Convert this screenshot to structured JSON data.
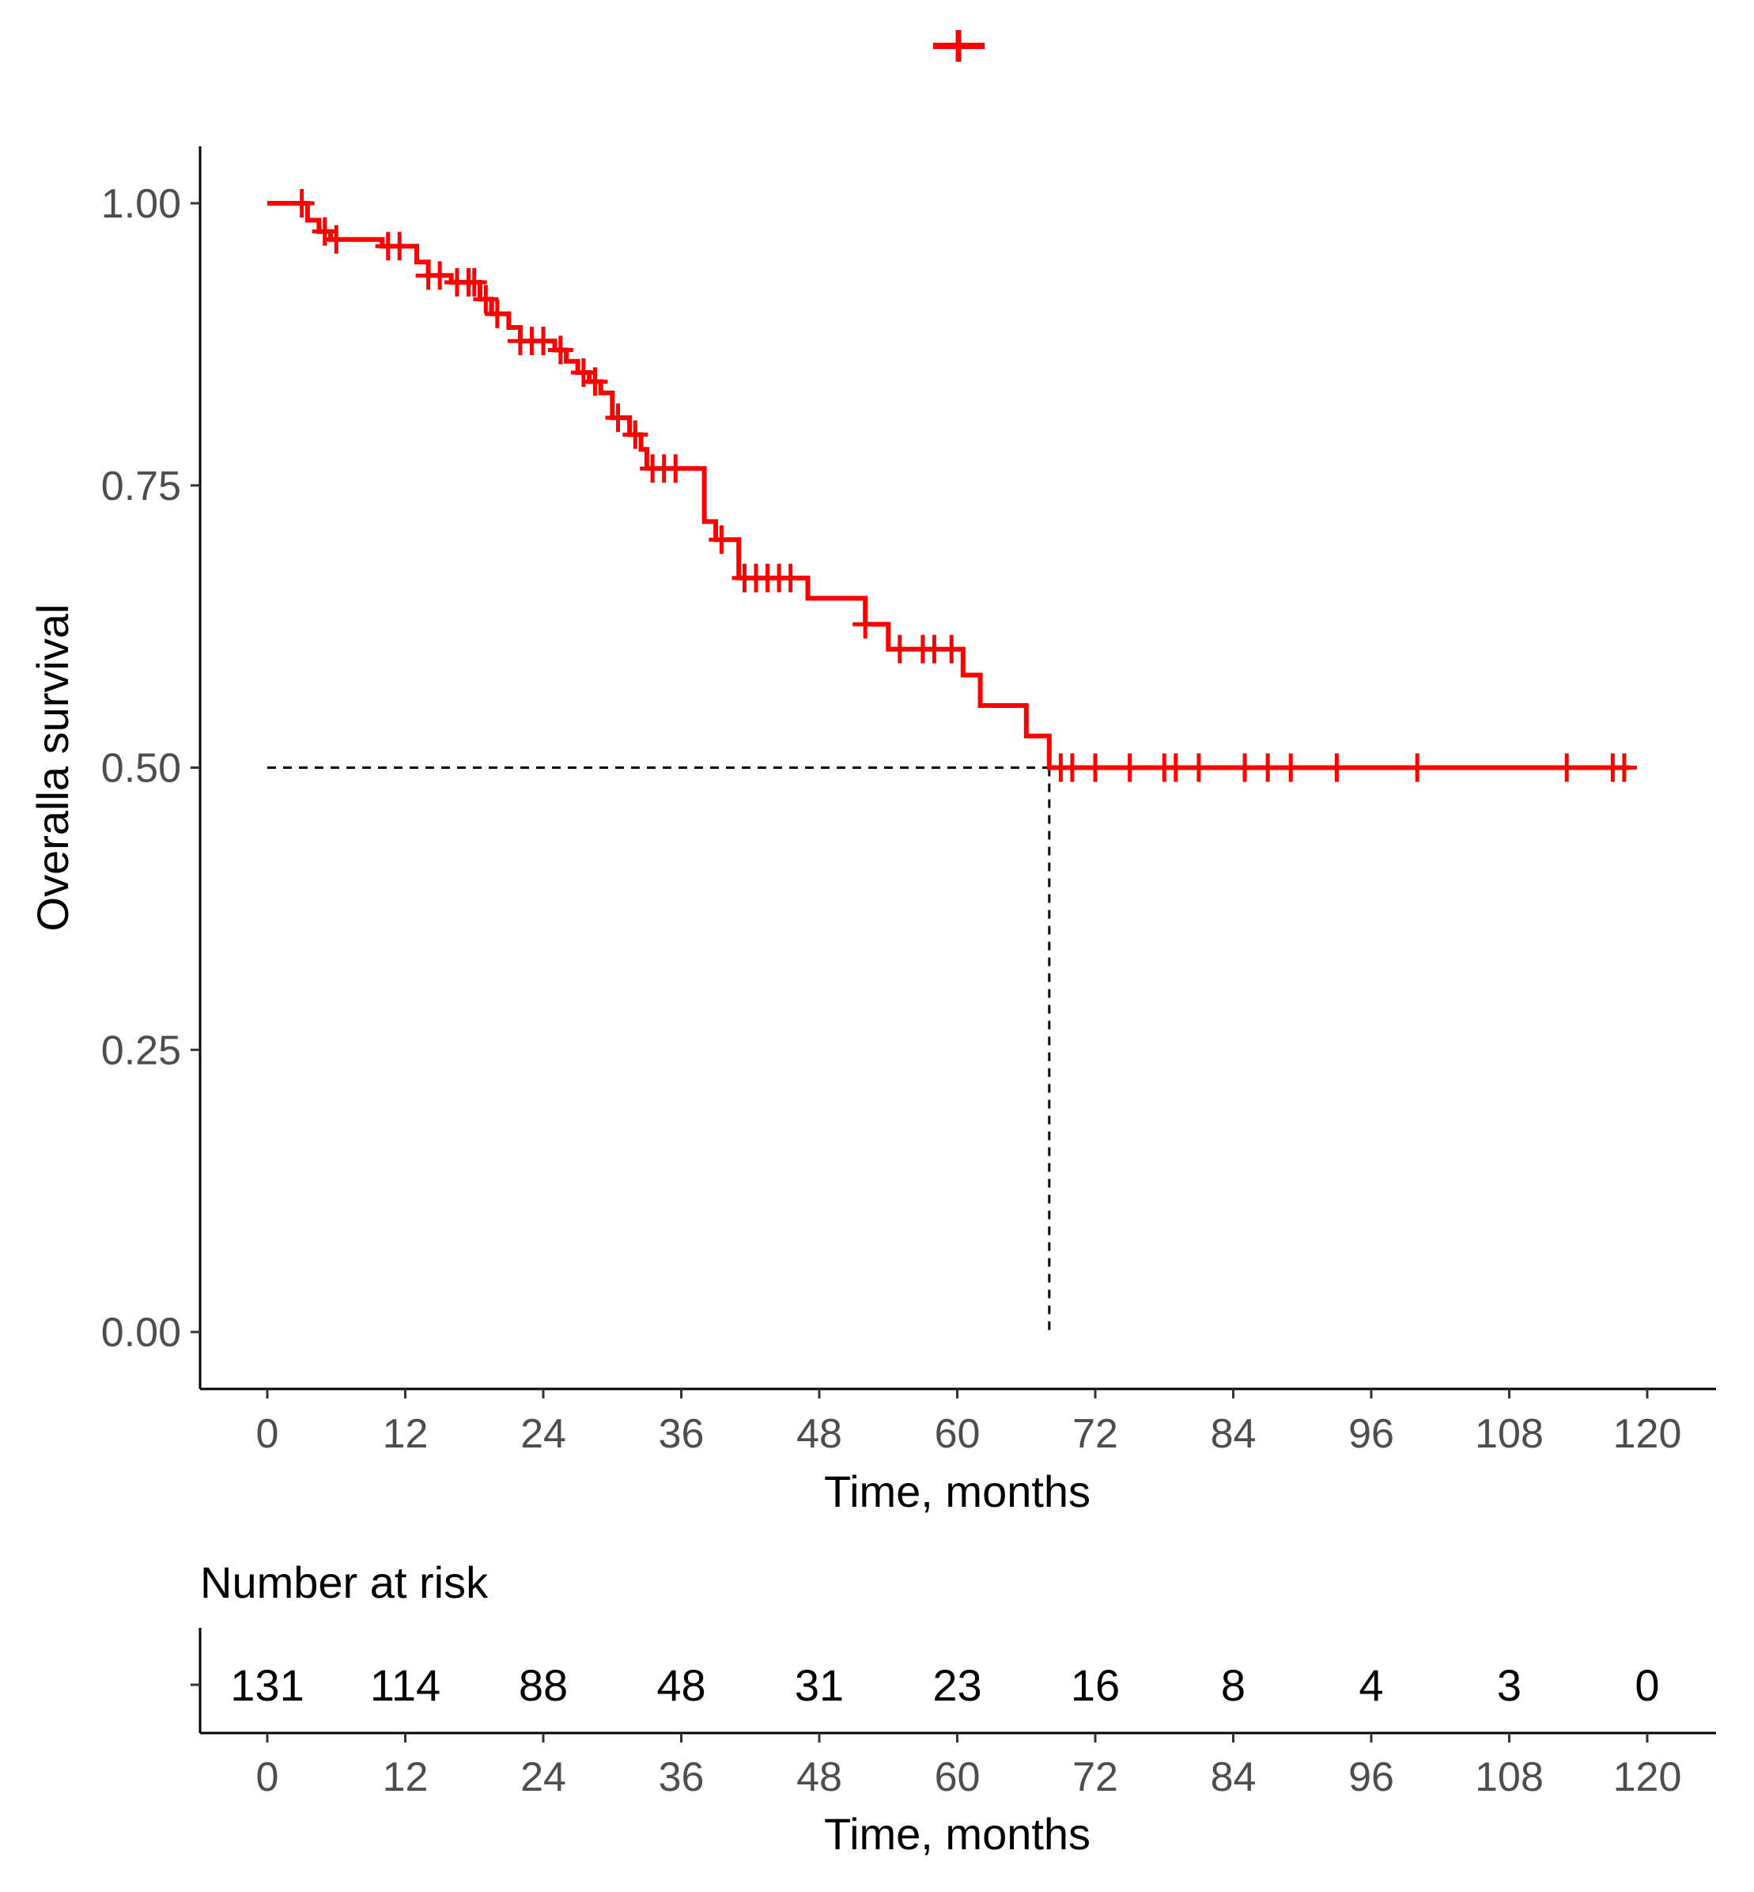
{
  "chart_data": [
    {
      "type": "line",
      "subtype": "kaplan-meier",
      "title": "",
      "xlabel": "Time, months",
      "ylabel": "Overalla survival",
      "xlim": [
        0,
        120
      ],
      "ylim": [
        0,
        1
      ],
      "x_ticks": [
        "0",
        "12",
        "24",
        "36",
        "48",
        "60",
        "72",
        "84",
        "96",
        "108",
        "120"
      ],
      "y_ticks": [
        "0.00",
        "0.25",
        "0.50",
        "0.75",
        "1.00"
      ],
      "grid": false,
      "legend": "top-center",
      "median_survival": {
        "time": 68,
        "survival": 0.5
      },
      "series": [
        {
          "name": "",
          "color": "#ff0000",
          "steps": [
            [
              0,
              1.0
            ],
            [
              3.5,
              0.985
            ],
            [
              4.5,
              0.975
            ],
            [
              5.5,
              0.968
            ],
            [
              10,
              0.962
            ],
            [
              13,
              0.948
            ],
            [
              14,
              0.936
            ],
            [
              16,
              0.93
            ],
            [
              18.5,
              0.915
            ],
            [
              19.5,
              0.902
            ],
            [
              21,
              0.89
            ],
            [
              22,
              0.878
            ],
            [
              25,
              0.87
            ],
            [
              26,
              0.86
            ],
            [
              27,
              0.85
            ],
            [
              28,
              0.842
            ],
            [
              29,
              0.832
            ],
            [
              30,
              0.81
            ],
            [
              31.5,
              0.795
            ],
            [
              32.5,
              0.782
            ],
            [
              33,
              0.765
            ],
            [
              38,
              0.718
            ],
            [
              39,
              0.702
            ],
            [
              41,
              0.668
            ],
            [
              47,
              0.65
            ],
            [
              52,
              0.627
            ],
            [
              54,
              0.605
            ],
            [
              60.5,
              0.582
            ],
            [
              62,
              0.555
            ],
            [
              66,
              0.528
            ],
            [
              68,
              0.5
            ],
            [
              118.5,
              0.5
            ]
          ],
          "censor_marks": [
            [
              3,
              1.0
            ],
            [
              5,
              0.975
            ],
            [
              6,
              0.968
            ],
            [
              10.5,
              0.962
            ],
            [
              11.5,
              0.962
            ],
            [
              14,
              0.936
            ],
            [
              15,
              0.936
            ],
            [
              16.5,
              0.93
            ],
            [
              17.5,
              0.93
            ],
            [
              18,
              0.93
            ],
            [
              19,
              0.915
            ],
            [
              20,
              0.902
            ],
            [
              22,
              0.878
            ],
            [
              23,
              0.878
            ],
            [
              24,
              0.878
            ],
            [
              25.5,
              0.87
            ],
            [
              27.5,
              0.85
            ],
            [
              28.5,
              0.842
            ],
            [
              30.5,
              0.81
            ],
            [
              32,
              0.795
            ],
            [
              33.5,
              0.765
            ],
            [
              34.5,
              0.765
            ],
            [
              35.5,
              0.765
            ],
            [
              39.5,
              0.702
            ],
            [
              41.5,
              0.668
            ],
            [
              42.5,
              0.668
            ],
            [
              43.5,
              0.668
            ],
            [
              44.5,
              0.668
            ],
            [
              45.5,
              0.668
            ],
            [
              52,
              0.627
            ],
            [
              55,
              0.605
            ],
            [
              57,
              0.605
            ],
            [
              58,
              0.605
            ],
            [
              59.5,
              0.605
            ],
            [
              69,
              0.5
            ],
            [
              70,
              0.5
            ],
            [
              72,
              0.5
            ],
            [
              75,
              0.5
            ],
            [
              78,
              0.5
            ],
            [
              79,
              0.5
            ],
            [
              81,
              0.5
            ],
            [
              85,
              0.5
            ],
            [
              87,
              0.5
            ],
            [
              89,
              0.5
            ],
            [
              93,
              0.5
            ],
            [
              100,
              0.5
            ],
            [
              113,
              0.5
            ],
            [
              117,
              0.5
            ],
            [
              118,
              0.5
            ]
          ]
        }
      ]
    },
    {
      "type": "table",
      "title": "Number at risk",
      "xlabel": "Time, months",
      "xlim": [
        0,
        120
      ],
      "x_ticks": [
        "0",
        "12",
        "24",
        "36",
        "48",
        "60",
        "72",
        "84",
        "96",
        "108",
        "120"
      ],
      "times": [
        0,
        12,
        24,
        36,
        48,
        60,
        72,
        84,
        96,
        108,
        120
      ],
      "values": [
        "131",
        "114",
        "88",
        "48",
        "31",
        "23",
        "16",
        "8",
        "4",
        "3",
        "0"
      ]
    }
  ]
}
